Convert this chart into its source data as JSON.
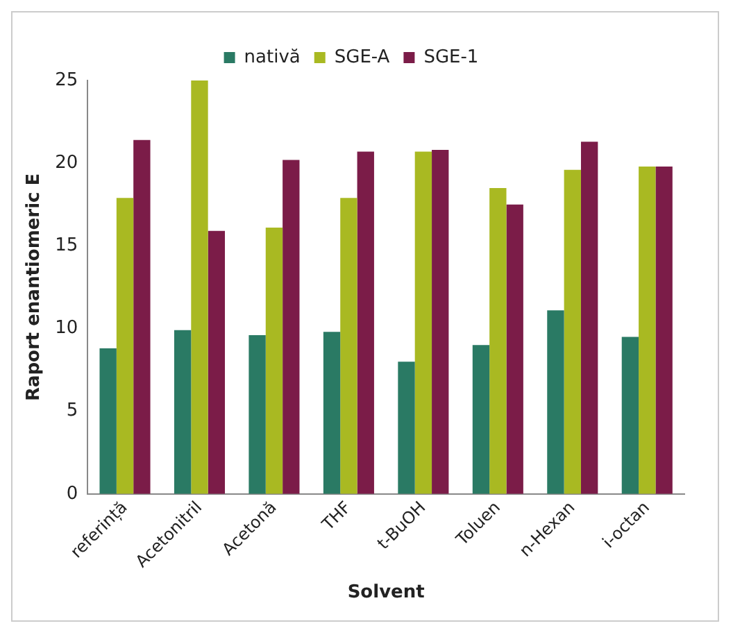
{
  "chart_data": {
    "type": "bar",
    "xlabel": "Solvent",
    "ylabel": "Raport enantiomeric E",
    "categories": [
      "referință",
      "Acetonitril",
      "Acetonă",
      "THF",
      "t-BuOH",
      "Toluen",
      "n-Hexan",
      "i-octan"
    ],
    "series": [
      {
        "name": "nativă",
        "color": "#2a7a64",
        "values": [
          8.8,
          9.9,
          9.6,
          9.8,
          8.0,
          9.0,
          11.1,
          9.5
        ]
      },
      {
        "name": "SGE-A",
        "color": "#a9b922",
        "values": [
          17.9,
          25,
          16.1,
          17.9,
          20.7,
          18.5,
          19.6,
          19.8
        ]
      },
      {
        "name": "SGE-1",
        "color": "#7b1c48",
        "values": [
          21.4,
          15.9,
          20.2,
          20.7,
          20.8,
          17.5,
          21.3,
          19.8
        ]
      }
    ],
    "ylim": [
      0,
      25
    ],
    "yticks": [
      0,
      5,
      10,
      15,
      20,
      25
    ],
    "grid": false,
    "legend": "top"
  }
}
